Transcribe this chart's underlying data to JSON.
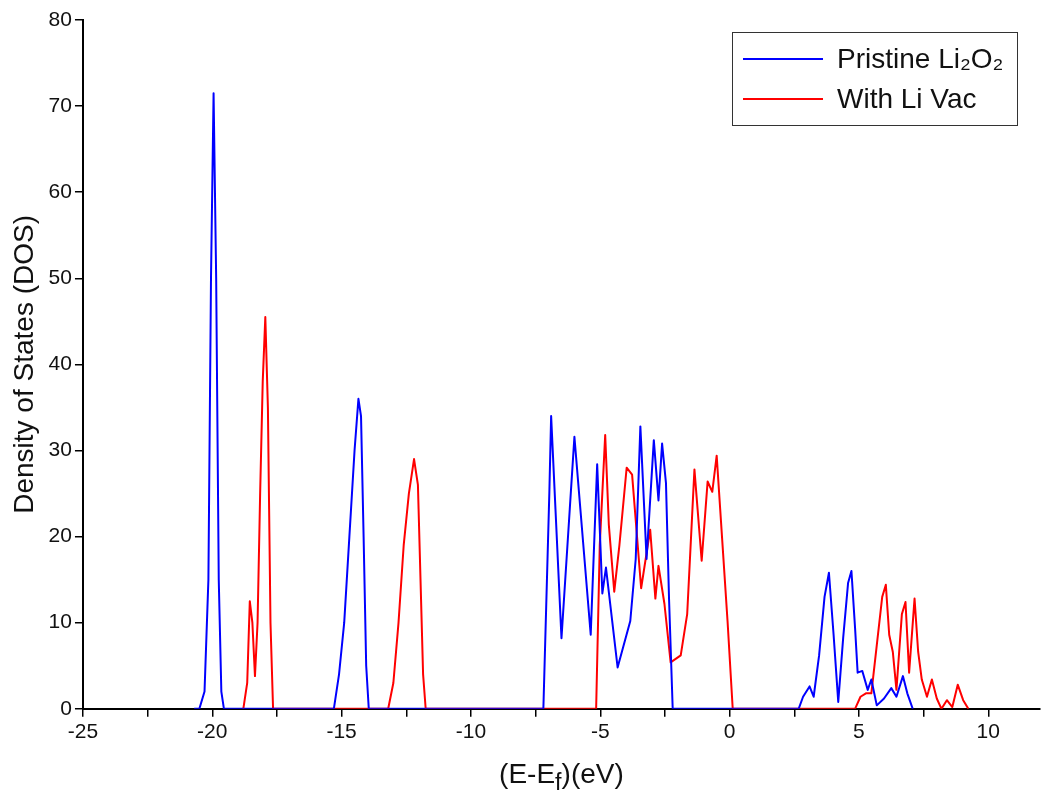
{
  "chart_data": {
    "type": "line",
    "xlabel": "(E-E$_{f}$)(eV)",
    "ylabel": "Density of States (DOS)",
    "xlim": [
      -25,
      12
    ],
    "xticks": [
      -25,
      {
        "value": -22.5,
        "label": null
      },
      -20,
      {
        "value": -17.5,
        "label": null
      },
      -15,
      {
        "value": -12.5,
        "label": null
      },
      -10,
      {
        "value": -7.5,
        "label": null
      },
      -5,
      {
        "value": -2.5,
        "label": null
      },
      0,
      {
        "value": 2.5,
        "label": null
      },
      5,
      {
        "value": 7.5,
        "label": null
      },
      10
    ],
    "ylim": [
      0,
      80
    ],
    "yticks": [
      0,
      10,
      20,
      30,
      40,
      50,
      60,
      70,
      80
    ],
    "grid": false,
    "legend": "top right",
    "marker": "none",
    "line_style": "solid",
    "series": [
      {
        "name": "Pristine Li₂O₂",
        "color": "#0000ff",
        "x": [
          -20.7,
          -20.5,
          -20.3,
          -20.15,
          -20.05,
          -19.95,
          -19.85,
          -19.75,
          -19.65,
          -19.55,
          -15.3,
          -15.1,
          -14.9,
          -14.7,
          -14.5,
          -14.35,
          -14.25,
          -14.15,
          -14.05,
          -13.95,
          -7.2,
          -6.97,
          -6.9,
          -6.5,
          -6.0,
          -5.37,
          -5.12,
          -4.92,
          -4.78,
          -4.33,
          -3.84,
          -3.63,
          -3.45,
          -3.21,
          -2.93,
          -2.75,
          -2.61,
          -2.46,
          -2.34,
          -2.2,
          2.67,
          2.84,
          3.09,
          3.25,
          3.46,
          3.67,
          3.84,
          4.02,
          4.2,
          4.39,
          4.58,
          4.71,
          4.85,
          4.95,
          5.13,
          5.34,
          5.48,
          5.69,
          5.97,
          6.25,
          6.45,
          6.7,
          6.87,
          7.08
        ],
        "values": [
          0,
          0,
          2,
          15,
          50,
          71.5,
          50,
          15,
          2,
          0,
          0,
          4,
          10,
          20,
          30,
          36,
          34,
          20,
          5,
          0,
          0,
          25,
          34,
          8.2,
          31.6,
          8.6,
          28.4,
          13.4,
          16.4,
          4.8,
          10.2,
          17.4,
          32.8,
          17.4,
          31.2,
          24.2,
          30.8,
          26.2,
          12.6,
          0,
          0,
          1.4,
          2.6,
          1.4,
          6.2,
          13,
          15.8,
          8.6,
          0.8,
          8.2,
          14.6,
          16,
          9.4,
          4.2,
          4.4,
          2.2,
          3.4,
          0.4,
          1.2,
          2.4,
          1.4,
          3.8,
          1.8,
          0
        ]
      },
      {
        "name": "With Li Vac",
        "color": "#ff0000",
        "x": [
          -18.8,
          -18.65,
          -18.55,
          -18.45,
          -18.35,
          -18.25,
          -18.15,
          -18.05,
          -17.95,
          -17.85,
          -17.75,
          -17.65,
          -13.2,
          -13.0,
          -12.8,
          -12.6,
          -12.4,
          -12.2,
          -12.05,
          -11.95,
          -11.85,
          -11.75,
          -5.16,
          -5.02,
          -4.81,
          -4.67,
          -4.46,
          -4.26,
          -3.98,
          -3.77,
          -3.42,
          -3.07,
          -2.87,
          -2.75,
          -2.52,
          -2.28,
          -1.89,
          -1.64,
          -1.36,
          -1.08,
          -0.85,
          -0.67,
          -0.5,
          -0.29,
          -0.08,
          0.12,
          4.85,
          5.06,
          5.27,
          5.48,
          5.69,
          5.9,
          6.04,
          6.17,
          6.31,
          6.45,
          6.66,
          6.8,
          6.94,
          7.15,
          7.29,
          7.43,
          7.63,
          7.82,
          8.01,
          8.19,
          8.4,
          8.61,
          8.82,
          9.03,
          9.23
        ],
        "values": [
          0,
          3,
          12.5,
          10,
          3.8,
          10,
          25,
          38,
          45.5,
          35,
          10,
          0,
          0,
          3,
          10,
          19,
          25,
          29,
          26,
          15,
          4,
          0,
          0,
          19,
          31.8,
          21.4,
          13.6,
          19,
          28,
          27.2,
          14,
          20.8,
          12.8,
          16.6,
          12.2,
          5.4,
          6.2,
          11,
          27.8,
          17.2,
          26.4,
          25.2,
          29.4,
          19.8,
          10.2,
          0,
          0,
          1.4,
          1.8,
          1.8,
          7.4,
          13,
          14.4,
          8.6,
          6.6,
          2.2,
          11,
          12.4,
          4.2,
          12.8,
          6.6,
          3.4,
          1.4,
          3.4,
          1.2,
          0,
          1,
          0.2,
          2.8,
          1,
          0
        ]
      }
    ]
  }
}
